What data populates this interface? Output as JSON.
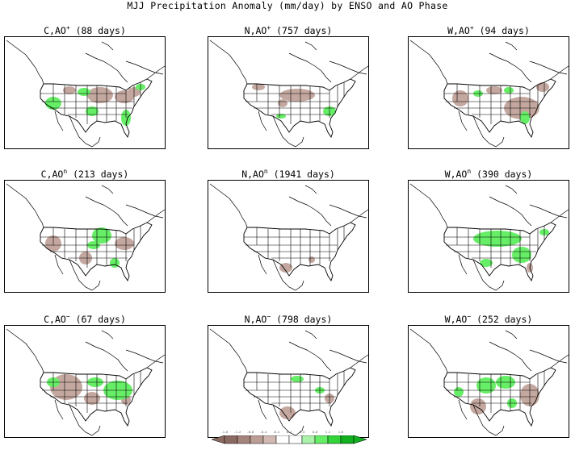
{
  "title": "MJJ Precipitation Anomaly (mm/day) by ENSO and AO Phase",
  "colors": {
    "dry": "#c4a8a0",
    "dry_strong": "#9c7b72",
    "wet": "#66ee66",
    "wet_strong": "#1fbf2a",
    "line": "#000000"
  },
  "panels": [
    {
      "key": "c_aop",
      "label": "C,AO",
      "sup": "+",
      "days": "(88 days)"
    },
    {
      "key": "n_aop",
      "label": "N,AO",
      "sup": "+",
      "days": "(757 days)"
    },
    {
      "key": "w_aop",
      "label": "W,AO",
      "sup": "+",
      "days": "(94 days)"
    },
    {
      "key": "c_ao0",
      "label": "C,AO",
      "sup": "n",
      "days": "(213 days)"
    },
    {
      "key": "n_ao0",
      "label": "N,AO",
      "sup": "n",
      "days": "(1941 days)"
    },
    {
      "key": "w_ao0",
      "label": "W,AO",
      "sup": "n",
      "days": "(390 days)"
    },
    {
      "key": "c_aom",
      "label": "C,AO",
      "sup": "−",
      "days": "(67 days)"
    },
    {
      "key": "n_aom",
      "label": "N,AO",
      "sup": "−",
      "days": "(798 days)"
    },
    {
      "key": "w_aom",
      "label": "W,AO",
      "sup": "−",
      "days": "(252 days)"
    }
  ],
  "colorbar": {
    "labels": [
      "-1.6",
      "-1.2",
      "-0.8",
      "-0.4",
      "-0.2",
      "0.2",
      "0.4",
      "0.8",
      "1.2",
      "1.6"
    ],
    "fills": [
      "#8c6a62",
      "#a5847b",
      "#bb9d95",
      "#d2bab3",
      "#ffffff",
      "#ffffff",
      "#aaf2aa",
      "#66ee66",
      "#33d43a",
      "#11b020"
    ]
  }
}
